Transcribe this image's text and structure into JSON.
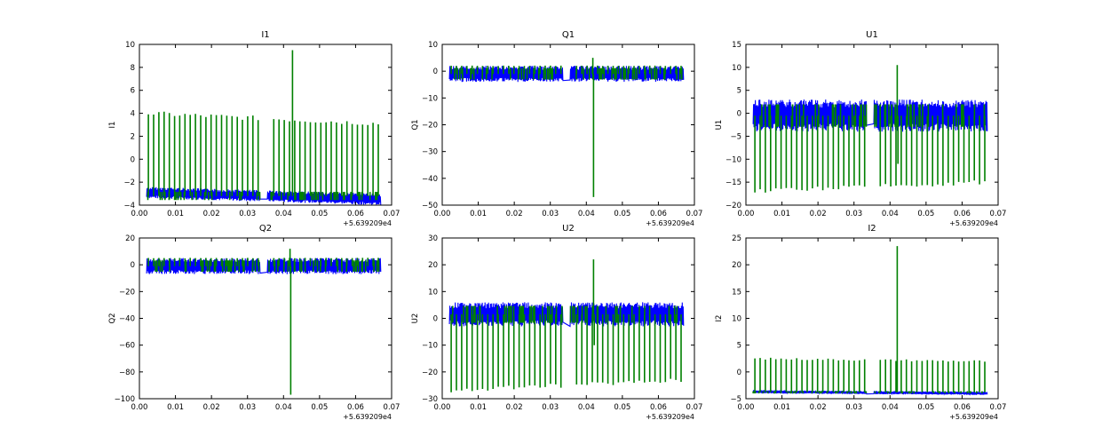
{
  "colors": {
    "series_blue": "#0000ff",
    "series_green": "#008000",
    "axes": "#000000",
    "background": "#ffffff"
  },
  "chart_data": [
    {
      "type": "line",
      "title": "I1",
      "xlabel": "",
      "ylabel": "I1",
      "xlim": [
        0.0,
        0.07
      ],
      "ylim": [
        -4,
        10
      ],
      "offset_text": "+5.639209e4",
      "xticks": [
        0.0,
        0.01,
        0.02,
        0.03,
        0.04,
        0.05,
        0.06,
        0.07
      ],
      "yticks": [
        -4,
        -2,
        0,
        2,
        4,
        6,
        8,
        10
      ],
      "x_range": [
        0.002,
        0.067
      ],
      "gap": [
        0.0335,
        0.0355
      ],
      "series": [
        {
          "color": "#0000ff",
          "values_description_band": [
            -3.6,
            -2.6
          ],
          "trend": [
            -2.9,
            -3.5
          ]
        },
        {
          "color": "#008000",
          "base": -3.2,
          "spike_peaks": [
            4.0,
            3.1
          ],
          "outliers": [
            {
              "x": 0.0425,
              "y": 9.5
            }
          ]
        }
      ]
    },
    {
      "type": "line",
      "title": "Q1",
      "xlabel": "",
      "ylabel": "Q1",
      "xlim": [
        0.0,
        0.07
      ],
      "ylim": [
        -50,
        10
      ],
      "offset_text": "+5.639209e4",
      "xticks": [
        0.0,
        0.01,
        0.02,
        0.03,
        0.04,
        0.05,
        0.06,
        0.07
      ],
      "yticks": [
        -50,
        -40,
        -30,
        -20,
        -10,
        0,
        10
      ],
      "x_range": [
        0.002,
        0.067
      ],
      "gap": [
        0.0335,
        0.0355
      ],
      "series": [
        {
          "color": "#0000ff",
          "band": [
            -4,
            2
          ],
          "trend": [
            -1,
            -1
          ]
        },
        {
          "color": "#008000",
          "base": -1,
          "spike_peaks": [
            2,
            2
          ],
          "outliers": [
            {
              "x": 0.042,
              "y": -47
            },
            {
              "x": 0.0418,
              "y": 5
            }
          ]
        }
      ]
    },
    {
      "type": "line",
      "title": "U1",
      "xlabel": "",
      "ylabel": "U1",
      "xlim": [
        0.0,
        0.07
      ],
      "ylim": [
        -20,
        15
      ],
      "offset_text": "+5.639209e4",
      "xticks": [
        0.0,
        0.01,
        0.02,
        0.03,
        0.04,
        0.05,
        0.06,
        0.07
      ],
      "yticks": [
        -20,
        -15,
        -10,
        -5,
        0,
        5,
        10,
        15
      ],
      "x_range": [
        0.002,
        0.067
      ],
      "gap": [
        0.0335,
        0.0355
      ],
      "series": [
        {
          "color": "#0000ff",
          "band": [
            -4,
            3
          ],
          "trend": [
            -0.5,
            -0.5
          ]
        },
        {
          "color": "#008000",
          "base": -0.5,
          "spike_peaks": [
            -17,
            -15
          ],
          "outliers": [
            {
              "x": 0.042,
              "y": 10.5
            },
            {
              "x": 0.0422,
              "y": -11
            }
          ]
        }
      ]
    },
    {
      "type": "line",
      "title": "Q2",
      "xlabel": "",
      "ylabel": "Q2",
      "xlim": [
        0.0,
        0.07
      ],
      "ylim": [
        -100,
        20
      ],
      "offset_text": "+5.639209e4",
      "xticks": [
        0.0,
        0.01,
        0.02,
        0.03,
        0.04,
        0.05,
        0.06,
        0.07
      ],
      "yticks": [
        -100,
        -80,
        -60,
        -40,
        -20,
        0,
        20
      ],
      "x_range": [
        0.002,
        0.067
      ],
      "gap": [
        0.0335,
        0.0355
      ],
      "series": [
        {
          "color": "#0000ff",
          "band": [
            -7,
            5
          ],
          "trend": [
            -1,
            -1
          ]
        },
        {
          "color": "#008000",
          "base": -1,
          "spike_peaks": [
            5,
            5
          ],
          "outliers": [
            {
              "x": 0.042,
              "y": -97
            },
            {
              "x": 0.0418,
              "y": 12
            }
          ]
        }
      ]
    },
    {
      "type": "line",
      "title": "U2",
      "xlabel": "",
      "ylabel": "U2",
      "xlim": [
        0.0,
        0.07
      ],
      "ylim": [
        -30,
        30
      ],
      "offset_text": "+5.639209e4",
      "xticks": [
        0.0,
        0.01,
        0.02,
        0.03,
        0.04,
        0.05,
        0.06,
        0.07
      ],
      "yticks": [
        -30,
        -20,
        -10,
        0,
        10,
        20,
        30
      ],
      "x_range": [
        0.002,
        0.067
      ],
      "gap": [
        0.0335,
        0.0355
      ],
      "series": [
        {
          "color": "#0000ff",
          "band": [
            -3,
            6
          ],
          "trend": [
            1.5,
            1.5
          ]
        },
        {
          "color": "#008000",
          "base": 1.5,
          "spike_peaks": [
            -27,
            -23
          ],
          "outliers": [
            {
              "x": 0.042,
              "y": 22
            },
            {
              "x": 0.0422,
              "y": -10
            }
          ]
        }
      ]
    },
    {
      "type": "line",
      "title": "I2",
      "xlabel": "",
      "ylabel": "I2",
      "xlim": [
        0.0,
        0.07
      ],
      "ylim": [
        -5,
        25
      ],
      "offset_text": "+5.639209e4",
      "xticks": [
        0.0,
        0.01,
        0.02,
        0.03,
        0.04,
        0.05,
        0.06,
        0.07
      ],
      "yticks": [
        -5,
        0,
        5,
        10,
        15,
        20,
        25
      ],
      "x_range": [
        0.002,
        0.067
      ],
      "gap": [
        0.0335,
        0.0355
      ],
      "series": [
        {
          "color": "#0000ff",
          "band": [
            -4.1,
            -3.5
          ],
          "trend": [
            -3.7,
            -4.0
          ]
        },
        {
          "color": "#008000",
          "base": -3.8,
          "spike_peaks": [
            2.5,
            2.0
          ],
          "outliers": [
            {
              "x": 0.042,
              "y": 23.5
            }
          ]
        }
      ]
    }
  ]
}
